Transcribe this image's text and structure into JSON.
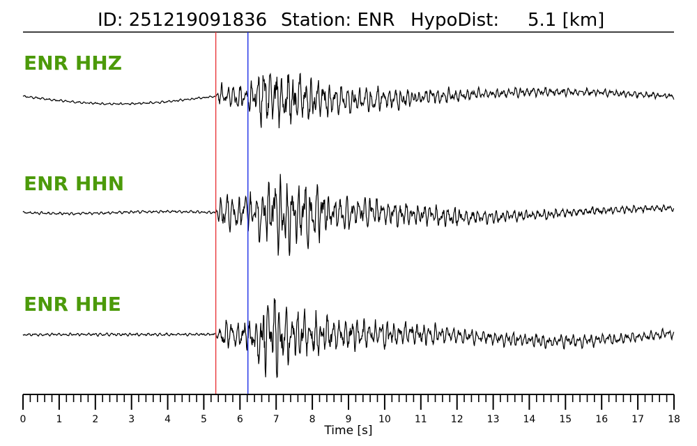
{
  "title": {
    "id_label": "ID: 251219091836",
    "station_label": "Station: ENR",
    "hypodist_label": "HypoDist:",
    "hypodist_value": "5.1 [km]"
  },
  "label_color": "#4c9a0a",
  "pick_colors": {
    "p_pick": "#e8373a",
    "s_pick": "#1c2ee6"
  },
  "chart_data": {
    "type": "line",
    "xlabel": "Time [s]",
    "xlim": [
      0,
      18
    ],
    "x_major_ticks": [
      0,
      1,
      2,
      3,
      4,
      5,
      6,
      7,
      8,
      9,
      10,
      11,
      12,
      13,
      14,
      15,
      16,
      17,
      18
    ],
    "x_minor_step": 0.2,
    "grid": false,
    "picks": [
      {
        "kind": "p_pick",
        "time": 5.33
      },
      {
        "kind": "s_pick",
        "time": 6.22
      }
    ],
    "series": [
      {
        "name": "ENR HHZ",
        "approx_envelope": [
          [
            0.0,
            0.03
          ],
          [
            5.3,
            0.03
          ],
          [
            5.5,
            0.35
          ],
          [
            6.2,
            0.3
          ],
          [
            6.7,
            1.0
          ],
          [
            7.5,
            0.8
          ],
          [
            8.5,
            0.5
          ],
          [
            10.5,
            0.3
          ],
          [
            12.5,
            0.15
          ],
          [
            18.0,
            0.08
          ]
        ]
      },
      {
        "name": "ENR HHN",
        "approx_envelope": [
          [
            0.0,
            0.03
          ],
          [
            5.3,
            0.03
          ],
          [
            5.5,
            0.4
          ],
          [
            6.2,
            0.4
          ],
          [
            7.0,
            1.0
          ],
          [
            7.8,
            0.7
          ],
          [
            9.0,
            0.4
          ],
          [
            11.0,
            0.25
          ],
          [
            14.0,
            0.12
          ],
          [
            18.0,
            0.08
          ]
        ]
      },
      {
        "name": "ENR HHE",
        "approx_envelope": [
          [
            0.0,
            0.03
          ],
          [
            5.3,
            0.03
          ],
          [
            5.5,
            0.3
          ],
          [
            6.2,
            0.35
          ],
          [
            6.8,
            1.0
          ],
          [
            7.5,
            0.6
          ],
          [
            9.0,
            0.35
          ],
          [
            12.0,
            0.18
          ],
          [
            18.0,
            0.1
          ]
        ]
      }
    ]
  }
}
